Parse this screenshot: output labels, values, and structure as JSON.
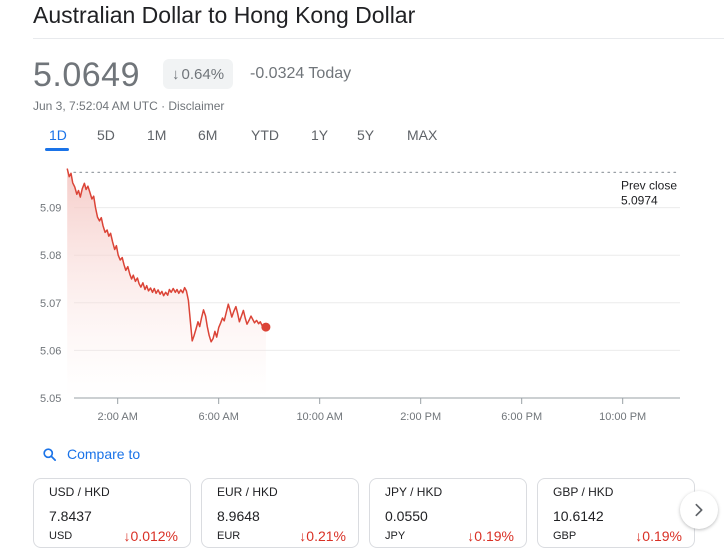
{
  "header": {
    "title": "Australian Dollar to Hong Kong Dollar",
    "price": "5.0649",
    "percent_change": "0.64%",
    "change_text": "-0.0324 Today",
    "timestamp": "Jun 3, 7:52:04 AM UTC · Disclaimer"
  },
  "tabs": [
    {
      "label": "1D",
      "active": true
    },
    {
      "label": "5D"
    },
    {
      "label": "1M"
    },
    {
      "label": "6M"
    },
    {
      "label": "YTD"
    },
    {
      "label": "1Y"
    },
    {
      "label": "5Y"
    },
    {
      "label": "MAX"
    }
  ],
  "colors": {
    "down": "#d93025",
    "accent": "#1a73e8",
    "line": "#db4437",
    "muted": "#70757a"
  },
  "chart_data": {
    "type": "line",
    "xlabel": "",
    "ylabel": "",
    "x_unit": "hour of day (UTC)",
    "x_ticks": [
      {
        "x": 2,
        "label": "2:00 AM"
      },
      {
        "x": 6,
        "label": "6:00 AM"
      },
      {
        "x": 10,
        "label": "10:00 AM"
      },
      {
        "x": 14,
        "label": "2:00 PM"
      },
      {
        "x": 18,
        "label": "6:00 PM"
      },
      {
        "x": 22,
        "label": "10:00 PM"
      }
    ],
    "y_ticks": [
      5.05,
      5.06,
      5.07,
      5.08,
      5.09
    ],
    "xlim": [
      0.27,
      24.27
    ],
    "ylim": [
      5.05,
      5.1
    ],
    "grid": true,
    "prev_close": {
      "label": "Prev close",
      "value": "5.0974",
      "y": 5.0974
    },
    "series": [
      {
        "values": [
          [
            0.0,
            5.0982
          ],
          [
            0.08,
            5.0965
          ],
          [
            0.15,
            5.0972
          ],
          [
            0.22,
            5.0952
          ],
          [
            0.3,
            5.0943
          ],
          [
            0.38,
            5.0928
          ],
          [
            0.45,
            5.0936
          ],
          [
            0.52,
            5.0922
          ],
          [
            0.6,
            5.094
          ],
          [
            0.68,
            5.0951
          ],
          [
            0.75,
            5.0938
          ],
          [
            0.82,
            5.0945
          ],
          [
            0.9,
            5.0932
          ],
          [
            0.98,
            5.0918
          ],
          [
            1.05,
            5.0924
          ],
          [
            1.12,
            5.09
          ],
          [
            1.2,
            5.088
          ],
          [
            1.28,
            5.0872
          ],
          [
            1.35,
            5.0879
          ],
          [
            1.42,
            5.0862
          ],
          [
            1.5,
            5.0848
          ],
          [
            1.58,
            5.0853
          ],
          [
            1.65,
            5.084
          ],
          [
            1.72,
            5.0846
          ],
          [
            1.8,
            5.0828
          ],
          [
            1.88,
            5.0812
          ],
          [
            1.95,
            5.082
          ],
          [
            2.02,
            5.08
          ],
          [
            2.1,
            5.079
          ],
          [
            2.18,
            5.0795
          ],
          [
            2.25,
            5.078
          ],
          [
            2.32,
            5.0768
          ],
          [
            2.4,
            5.0776
          ],
          [
            2.48,
            5.076
          ],
          [
            2.55,
            5.075
          ],
          [
            2.62,
            5.0758
          ],
          [
            2.7,
            5.0745
          ],
          [
            2.78,
            5.0752
          ],
          [
            2.85,
            5.074
          ],
          [
            2.92,
            5.0733
          ],
          [
            3.0,
            5.0742
          ],
          [
            3.08,
            5.0728
          ],
          [
            3.15,
            5.0736
          ],
          [
            3.22,
            5.0725
          ],
          [
            3.3,
            5.0731
          ],
          [
            3.38,
            5.0722
          ],
          [
            3.45,
            5.073
          ],
          [
            3.52,
            5.072
          ],
          [
            3.6,
            5.0727
          ],
          [
            3.68,
            5.0718
          ],
          [
            3.75,
            5.0724
          ],
          [
            3.82,
            5.0715
          ],
          [
            3.9,
            5.0722
          ],
          [
            3.98,
            5.0716
          ],
          [
            4.05,
            5.0728
          ],
          [
            4.12,
            5.0722
          ],
          [
            4.2,
            5.073
          ],
          [
            4.28,
            5.0722
          ],
          [
            4.35,
            5.0728
          ],
          [
            4.42,
            5.072
          ],
          [
            4.5,
            5.0727
          ],
          [
            4.58,
            5.0721
          ],
          [
            4.65,
            5.0732
          ],
          [
            4.72,
            5.0725
          ],
          [
            4.8,
            5.0705
          ],
          [
            4.88,
            5.066
          ],
          [
            4.95,
            5.062
          ],
          [
            5.02,
            5.063
          ],
          [
            5.1,
            5.0645
          ],
          [
            5.18,
            5.066
          ],
          [
            5.25,
            5.065
          ],
          [
            5.32,
            5.0668
          ],
          [
            5.4,
            5.0685
          ],
          [
            5.48,
            5.0672
          ],
          [
            5.55,
            5.065
          ],
          [
            5.62,
            5.0632
          ],
          [
            5.7,
            5.0618
          ],
          [
            5.78,
            5.0625
          ],
          [
            5.85,
            5.064
          ],
          [
            5.92,
            5.0628
          ],
          [
            6.0,
            5.0648
          ],
          [
            6.08,
            5.0658
          ],
          [
            6.15,
            5.0668
          ],
          [
            6.22,
            5.0662
          ],
          [
            6.3,
            5.068
          ],
          [
            6.38,
            5.0697
          ],
          [
            6.45,
            5.0685
          ],
          [
            6.52,
            5.067
          ],
          [
            6.6,
            5.0682
          ],
          [
            6.68,
            5.0692
          ],
          [
            6.75,
            5.0678
          ],
          [
            6.82,
            5.066
          ],
          [
            6.9,
            5.0672
          ],
          [
            6.98,
            5.0684
          ],
          [
            7.05,
            5.0668
          ],
          [
            7.12,
            5.0655
          ],
          [
            7.2,
            5.0663
          ],
          [
            7.28,
            5.0672
          ],
          [
            7.35,
            5.0665
          ],
          [
            7.42,
            5.0658
          ],
          [
            7.5,
            5.0663
          ],
          [
            7.58,
            5.0656
          ],
          [
            7.65,
            5.066
          ],
          [
            7.72,
            5.0652
          ],
          [
            7.8,
            5.0651
          ],
          [
            7.87,
            5.0649
          ]
        ]
      }
    ]
  },
  "compare": {
    "label": "Compare to"
  },
  "cards": [
    {
      "pair": "USD / HKD",
      "value": "7.8437",
      "currency": "USD",
      "change": "0.012%"
    },
    {
      "pair": "EUR / HKD",
      "value": "8.9648",
      "currency": "EUR",
      "change": "0.21%"
    },
    {
      "pair": "JPY / HKD",
      "value": "0.0550",
      "currency": "JPY",
      "change": "0.19%"
    },
    {
      "pair": "GBP / HKD",
      "value": "10.6142",
      "currency": "GBP",
      "change": "0.19%"
    }
  ],
  "icons": {
    "down_arrow": "arrow-down-icon",
    "search": "search-icon",
    "next": "chevron-right-icon"
  }
}
